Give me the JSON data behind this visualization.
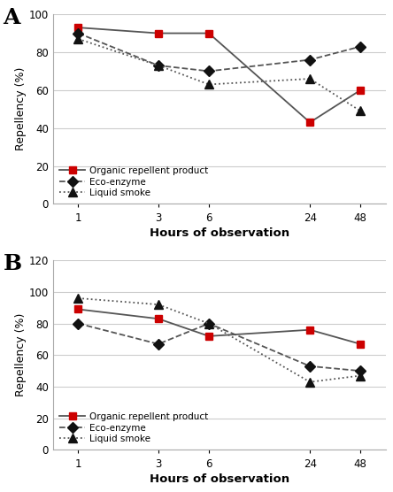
{
  "x_ticks": [
    1,
    3,
    6,
    24,
    48
  ],
  "x_labels": [
    "1",
    "3",
    "6",
    "24",
    "48"
  ],
  "x_log": [
    0.0,
    0.477,
    0.778,
    1.38,
    1.681
  ],
  "panel_A": {
    "label": "A",
    "organic": [
      93,
      90,
      90,
      43,
      60
    ],
    "eco": [
      90,
      73,
      70,
      76,
      83
    ],
    "liquid": [
      87,
      73,
      63,
      66,
      49
    ],
    "ylim": [
      0,
      100
    ],
    "yticks": [
      0,
      20,
      40,
      60,
      80,
      100
    ]
  },
  "panel_B": {
    "label": "B",
    "organic": [
      89,
      83,
      72,
      76,
      67
    ],
    "eco": [
      80,
      67,
      80,
      53,
      50
    ],
    "liquid": [
      96,
      92,
      80,
      43,
      47
    ],
    "ylim": [
      0,
      120
    ],
    "yticks": [
      0,
      20,
      40,
      60,
      80,
      100,
      120
    ]
  },
  "color_line": "#555555",
  "color_organic_marker": "#CC0000",
  "color_dark": "#111111",
  "marker_organic": "s",
  "marker_eco": "D",
  "marker_liquid": "^",
  "legend_labels": [
    "Organic repellent product",
    "Eco-enzyme",
    "Liquid smoke"
  ],
  "xlabel": "Hours of observation",
  "ylabel": "Repellency (%)",
  "bg_color": "#ffffff"
}
